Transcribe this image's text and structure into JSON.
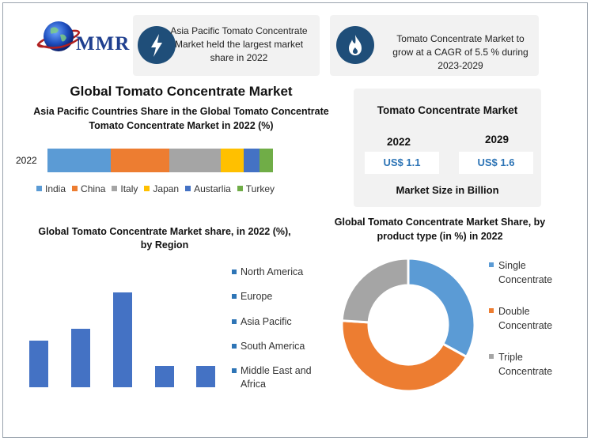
{
  "logo": {
    "text": "MMR"
  },
  "info_boxes": [
    {
      "icon": "lightning-icon",
      "text": "Asia Pacific Tomato Concentrate Market held the largest market share in 2022"
    },
    {
      "icon": "flame-icon",
      "text": "Tomato Concentrate Market to grow at a CAGR of 5.5 % during 2023-2029"
    }
  ],
  "main_title": "Global Tomato Concentrate Market",
  "market_size": {
    "title": "Tomato Concentrate Market",
    "years": [
      "2022",
      "2029"
    ],
    "values": [
      "US$ 1.1",
      "US$ 1.6"
    ],
    "footer": "Market Size in Billion"
  },
  "chart_data": [
    {
      "type": "bar",
      "orientation": "horizontal-stacked",
      "title": "Asia Pacific Countries Share in the Global Tomato Concentrate Tomato Concentrate Market in 2022 (%)",
      "categories": [
        "2022"
      ],
      "series": [
        {
          "name": "India",
          "values": [
            28
          ],
          "color": "#5b9bd5"
        },
        {
          "name": "China",
          "values": [
            26
          ],
          "color": "#ed7d31"
        },
        {
          "name": "Italy",
          "values": [
            23
          ],
          "color": "#a5a5a5"
        },
        {
          "name": "Japan",
          "values": [
            10
          ],
          "color": "#ffc000"
        },
        {
          "name": "Austarlia",
          "values": [
            7
          ],
          "color": "#4472c4"
        },
        {
          "name": "Turkey",
          "values": [
            6
          ],
          "color": "#70ad47"
        }
      ],
      "legend": "bottom"
    },
    {
      "type": "bar",
      "title": "Global Tomato Concentrate Market share, in 2022 (%), by Region",
      "categories": [
        "North America",
        "Europe",
        "Asia Pacific",
        "South America",
        "Middle East and Africa"
      ],
      "values": [
        24,
        30,
        49,
        11,
        11
      ],
      "ylim": [
        0,
        55
      ],
      "color": "#4472c4",
      "legend": "right"
    },
    {
      "type": "pie",
      "subtype": "donut",
      "title": "Global Tomato Concentrate Market Share, by product type (in %) in 2022",
      "labels": [
        "Single Concentrate",
        "Double Concentrate",
        "Triple Concentrate"
      ],
      "values": [
        33,
        43,
        24
      ],
      "colors": [
        "#5b9bd5",
        "#ed7d31",
        "#a5a5a5"
      ],
      "legend": "right"
    }
  ]
}
